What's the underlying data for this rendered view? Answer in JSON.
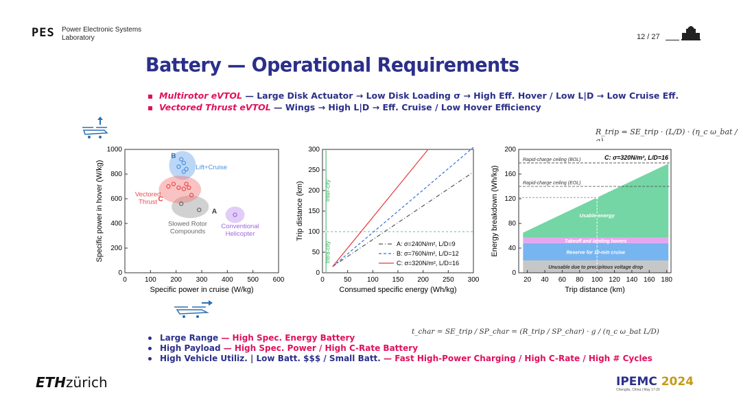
{
  "header": {
    "logo_text": "PES",
    "lab_name": "Power Electronic Systems Laboratory",
    "page_number": "12 / 27"
  },
  "title": "Battery — Operational Requirements",
  "top_bullets": [
    {
      "emph": "Multirotor eVTOL",
      "rest": " — Large Disk Actuator → Low Disk Loading σ → High Eff. Hover / Low L|D → Low Cruise Eff."
    },
    {
      "emph": "Vectored Thrust eVTOL",
      "rest": " — Wings → High L|D → Eff. Cruise / Low Hover Efficiency"
    }
  ],
  "formula_range": "R_trip = SE_trip · (L/D) · (η_c ω_bat / g)",
  "formula_time": "t_char = SE_trip / SP_char = (R_trip / SP_char) · g / (η_c ω_bat L/D)",
  "bottom_bullets": [
    {
      "main": "Large Range ",
      "emph": " — High Spec. Energy Battery"
    },
    {
      "main": "High Payload",
      "emph": " — High Spec. Power / High C-Rate Battery"
    },
    {
      "main": "High Vehicle Utiliz. | Low Batt. $$$ / Small Batt.",
      "emph": " — Fast High-Power Charging / High C-Rate / High # Cycles"
    }
  ],
  "footer": {
    "eth_bold": "ETH",
    "eth_rest": "zürich",
    "conf_name": "IPEMC",
    "conf_year": "2024",
    "conf_sub": "Chengdu, China | May 17-20"
  },
  "colors": {
    "navy": "#2b2f8a",
    "pink": "#e0105c",
    "green_fill": "#74d6a4",
    "purple_fill": "#e7a6f0",
    "blue_fill": "#77b5f0",
    "gray_fill": "#c7c7c7"
  },
  "chart_data": [
    {
      "type": "scatter",
      "xlabel": "Specific power in cruise (W/kg)",
      "ylabel": "Specific power in hover (W/kg)",
      "xlim": [
        0,
        600
      ],
      "ylim": [
        0,
        1000
      ],
      "xticks": [
        0,
        100,
        200,
        300,
        400,
        500,
        600
      ],
      "yticks": [
        0,
        200,
        400,
        600,
        800,
        1000
      ],
      "groups": [
        {
          "name": "Lift+Cruise",
          "color": "#4a90e2",
          "points": [
            [
              220,
              920
            ],
            [
              230,
              890
            ],
            [
              230,
              820
            ],
            [
              210,
              860
            ],
            [
              240,
              840
            ]
          ]
        },
        {
          "name": "Vectored Thrust",
          "color": "#e94a4a",
          "points": [
            [
              170,
              700
            ],
            [
              190,
              720
            ],
            [
              210,
              690
            ],
            [
              240,
              720
            ],
            [
              260,
              630
            ],
            [
              230,
              680
            ],
            [
              250,
              690
            ]
          ]
        },
        {
          "name": "Slowed Rotor Compounds",
          "color": "#666666",
          "points": [
            [
              220,
              560
            ],
            [
              290,
              510
            ]
          ]
        },
        {
          "name": "Conventional Helicopter",
          "color": "#a066dd",
          "points": [
            [
              430,
              470
            ]
          ]
        }
      ],
      "annotations": [
        "A",
        "B",
        "C"
      ]
    },
    {
      "type": "line",
      "xlabel": "Consumed specific energy (Wh/kg)",
      "ylabel": "Trip distance (km)",
      "xlim": [
        0,
        300
      ],
      "ylim": [
        0,
        300
      ],
      "xticks": [
        0,
        50,
        100,
        150,
        200,
        250,
        300
      ],
      "yticks": [
        0,
        50,
        100,
        150,
        200,
        250,
        300
      ],
      "series": [
        {
          "name": "A: σ=240N/m², L/D=9",
          "color": "#555555",
          "style": "dashdot",
          "x": [
            20,
            300
          ],
          "y": [
            15,
            245
          ]
        },
        {
          "name": "B: σ=760N/m², L/D=12",
          "color": "#2e6fd6",
          "style": "dashed",
          "x": [
            20,
            300
          ],
          "y": [
            15,
            305
          ]
        },
        {
          "name": "C: σ=320N/m², L/D=16",
          "color": "#e23a3a",
          "style": "solid",
          "x": [
            20,
            210
          ],
          "y": [
            15,
            300
          ]
        }
      ],
      "annotations": [
        "Inter-city",
        "Intra-city"
      ]
    },
    {
      "type": "area",
      "title": "C: σ=320N/m², L/D=16",
      "xlabel": "Trip distance (km)",
      "ylabel": "Energy breakdown (Wh/kg)",
      "xlim": [
        10,
        185
      ],
      "ylim": [
        0,
        200
      ],
      "xticks": [
        20,
        40,
        60,
        80,
        100,
        120,
        140,
        160,
        180
      ],
      "yticks": [
        0,
        40,
        80,
        120,
        160,
        200
      ],
      "layers": [
        {
          "name": "Unusable due to precipitous voltage drop",
          "from": 0,
          "to": 20
        },
        {
          "name": "Reserve for 10-min cruise",
          "from": 20,
          "to": 48
        },
        {
          "name": "Takeoff and landing hovers",
          "from": 48,
          "to": 57
        },
        {
          "name": "Usable energy",
          "start": 65,
          "end": 177
        }
      ],
      "reference_lines": [
        {
          "label": "Rapid-charge ceiling (BOL)",
          "y": 178
        },
        {
          "label": "Rapid-charge ceiling (EOL)",
          "y": 140
        }
      ],
      "marker": {
        "x": 100,
        "y": 122
      }
    }
  ]
}
